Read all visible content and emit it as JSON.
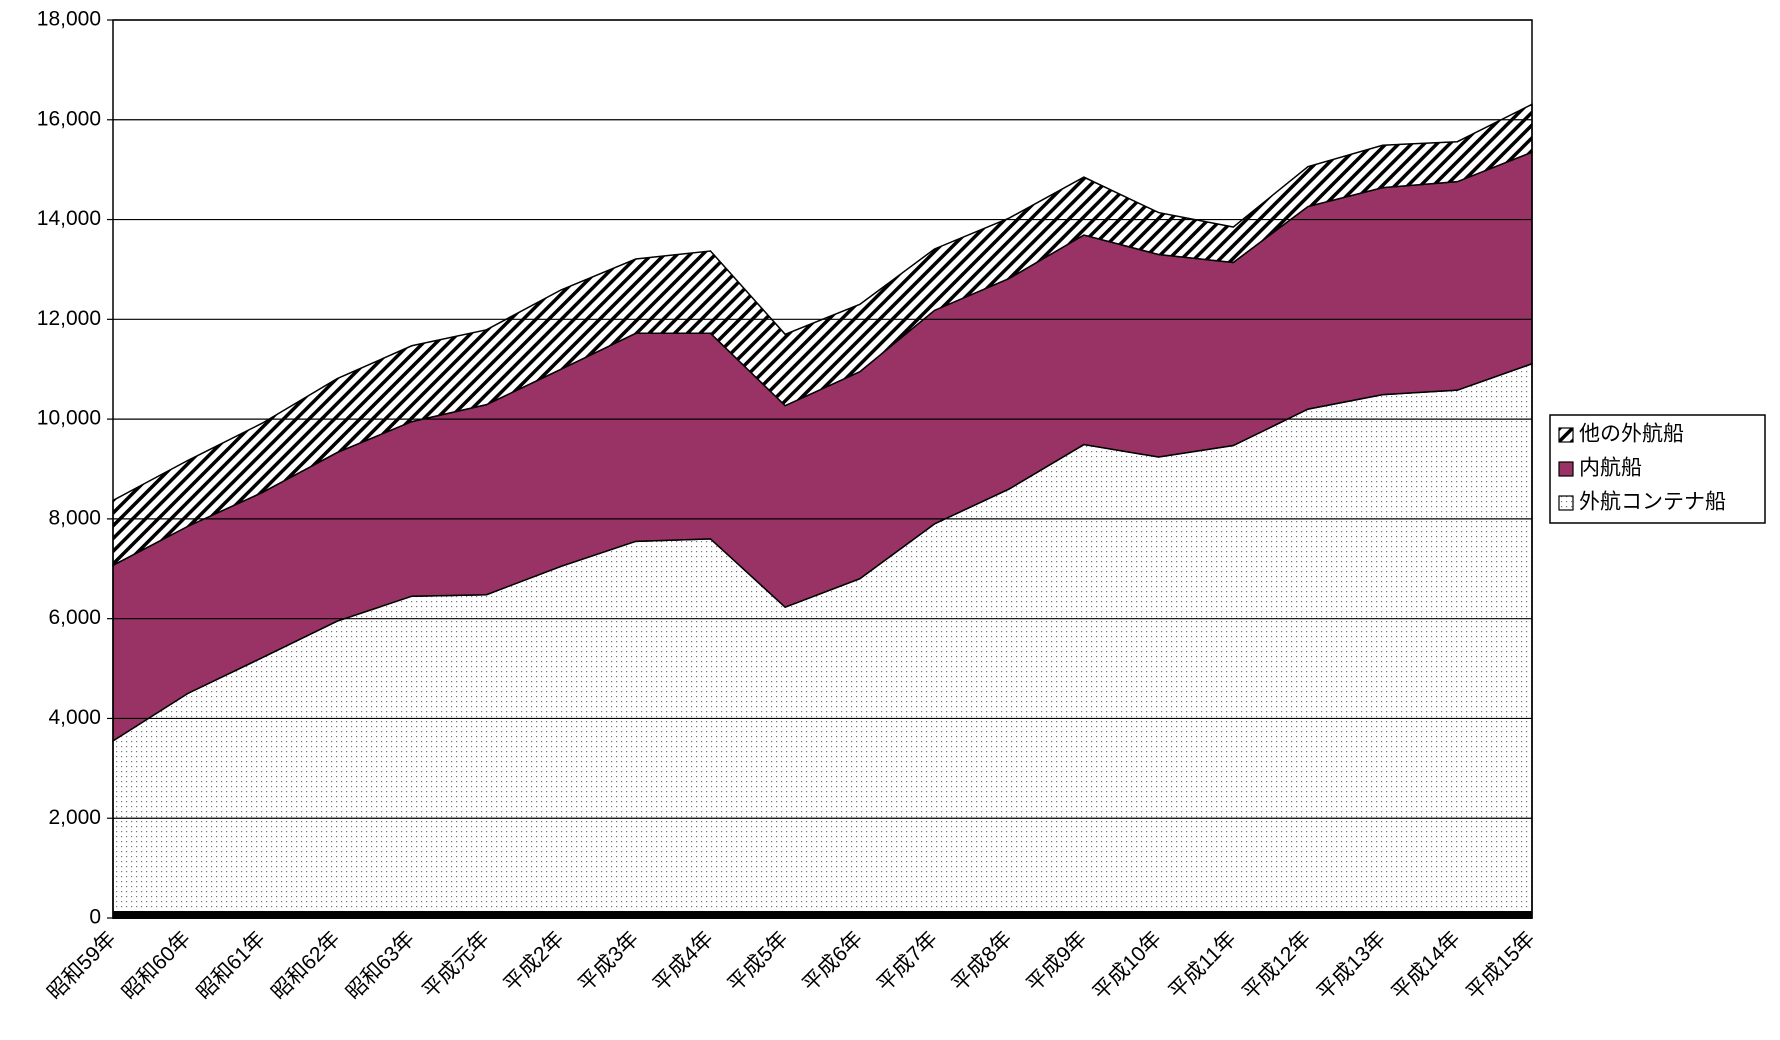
{
  "chart_data": {
    "type": "stacked_area",
    "categories": [
      "昭和59年",
      "昭和60年",
      "昭和61年",
      "昭和62年",
      "昭和63年",
      "平成元年",
      "平成2年",
      "平成3年",
      "平成4年",
      "平成5年",
      "平成6年",
      "平成7年",
      "平成8年",
      "平成9年",
      "平成10年",
      "平成11年",
      "平成12年",
      "平成13年",
      "平成14年",
      "平成15年"
    ],
    "series": [
      {
        "name": "外航コンテナ船",
        "color": "#ffffff",
        "pattern": "dots",
        "values": [
          3550,
          4500,
          5220,
          5950,
          6450,
          6480,
          7050,
          7550,
          7600,
          6230,
          6800,
          7900,
          8600,
          9490,
          9240,
          9470,
          10200,
          10490,
          10580,
          11110
        ]
      },
      {
        "name": "内航船",
        "color": "#993366",
        "pattern": "solid",
        "values": [
          3520,
          3350,
          3310,
          3380,
          3500,
          3810,
          3950,
          4170,
          4120,
          4040,
          4150,
          4280,
          4220,
          4200,
          4060,
          3670,
          4060,
          4150,
          4180,
          4240
        ]
      },
      {
        "name": "他の外航船",
        "color": "#ffffff",
        "pattern": "hatch",
        "values": [
          1300,
          1320,
          1390,
          1480,
          1520,
          1500,
          1590,
          1490,
          1650,
          1430,
          1350,
          1230,
          1210,
          1160,
          840,
          710,
          800,
          850,
          800,
          960
        ]
      }
    ],
    "ylim": [
      0,
      18000
    ],
    "yticks": [
      0,
      {
        "value": 2000,
        "label": "2,000"
      },
      {
        "value": 4000,
        "label": "4,000"
      },
      {
        "value": 6000,
        "label": "6,000"
      },
      {
        "value": 8000,
        "label": "8,000"
      },
      {
        "value": 10000,
        "label": "10,000"
      },
      {
        "value": 12000,
        "label": "12,000"
      },
      {
        "value": 14000,
        "label": "14,000"
      },
      {
        "value": 16000,
        "label": "16,000"
      },
      {
        "value": 18000,
        "label": "18,000"
      }
    ],
    "grid": true,
    "legend": "right"
  }
}
